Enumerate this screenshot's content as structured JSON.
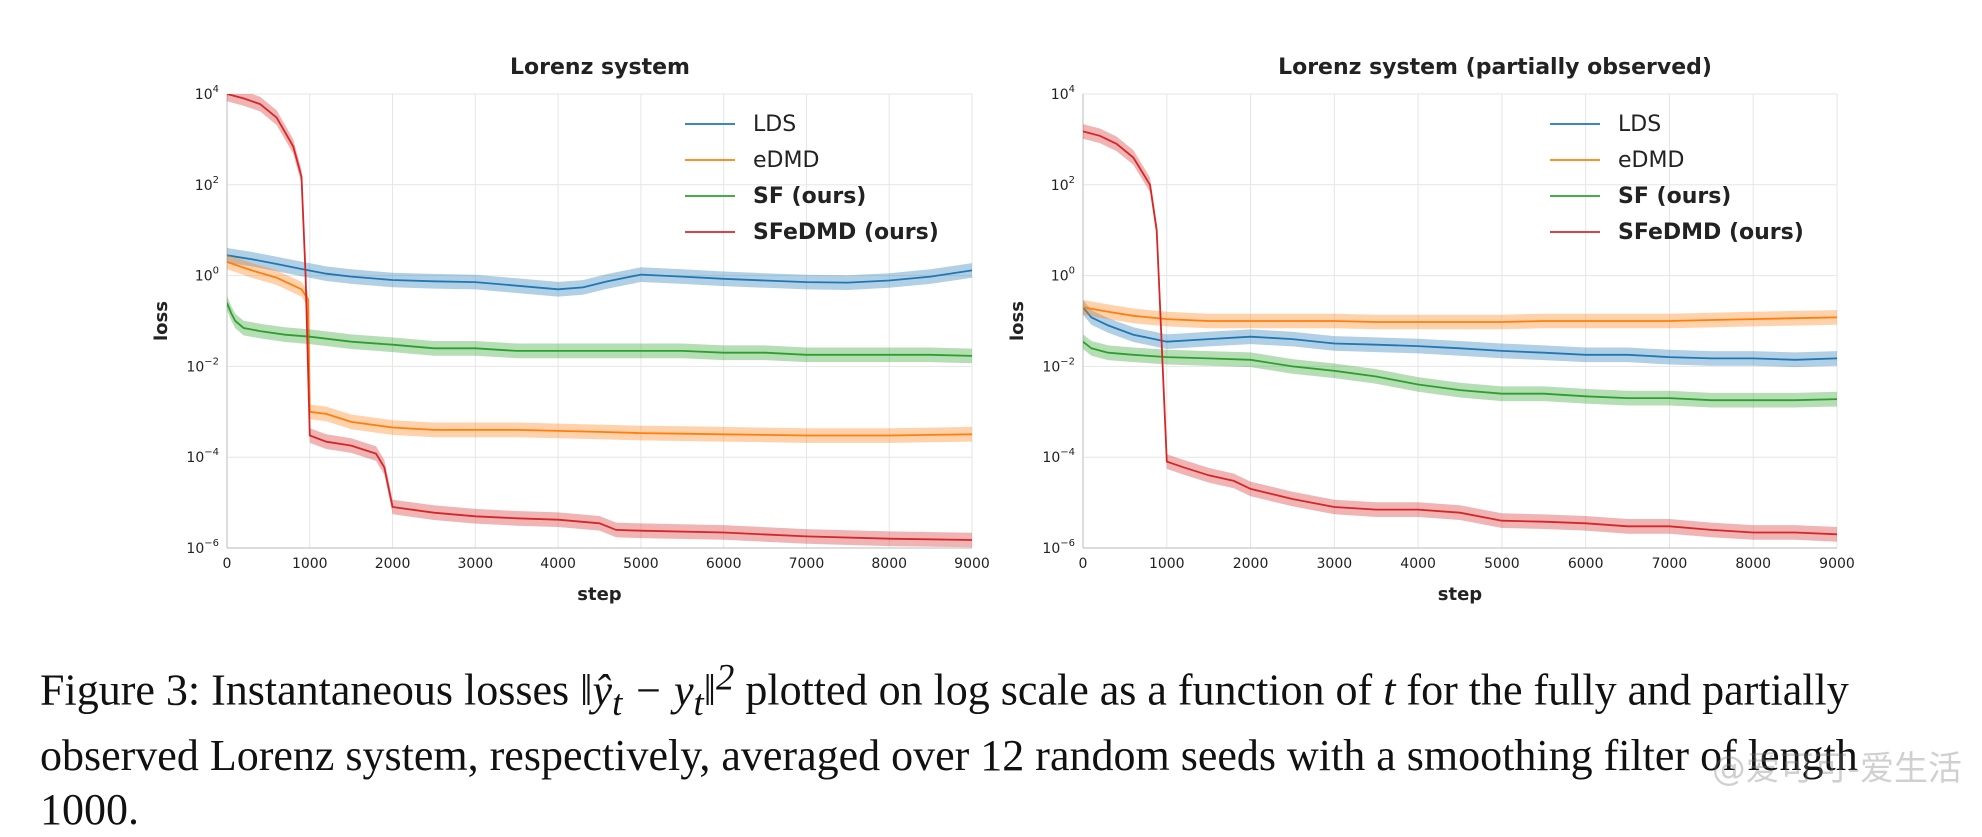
{
  "chart_data": [
    {
      "type": "line",
      "title": "Lorenz system",
      "xlabel": "step",
      "ylabel": "loss",
      "xlim": [
        0,
        9000
      ],
      "ylim_log10": [
        -6,
        4
      ],
      "yscale": "log",
      "xticks": [
        "0",
        "1000",
        "2000",
        "3000",
        "4000",
        "5000",
        "6000",
        "7000",
        "8000",
        "9000"
      ],
      "grid": true,
      "legend_position": "top-right",
      "series": [
        {
          "name": "LDS",
          "color": "#1f77b4",
          "bold": false,
          "x": [
            0,
            300,
            600,
            900,
            1200,
            1500,
            2000,
            2500,
            3000,
            3500,
            4000,
            4300,
            4600,
            5000,
            5500,
            6000,
            6500,
            7000,
            7500,
            8000,
            8500,
            9000
          ],
          "y": [
            2.8,
            2.3,
            1.8,
            1.4,
            1.1,
            0.95,
            0.8,
            0.75,
            0.72,
            0.6,
            0.5,
            0.55,
            0.75,
            1.05,
            0.95,
            0.85,
            0.78,
            0.72,
            0.7,
            0.78,
            0.95,
            1.3
          ]
        },
        {
          "name": "eDMD",
          "color": "#ff7f0e",
          "bold": false,
          "x": [
            0,
            300,
            600,
            900,
            980,
            1000,
            1200,
            1500,
            2000,
            2500,
            3000,
            3500,
            4000,
            4500,
            5000,
            5500,
            6000,
            6500,
            7000,
            7500,
            8000,
            8500,
            9000
          ],
          "y": [
            2.0,
            1.3,
            0.9,
            0.5,
            0.3,
            0.001,
            0.0009,
            0.0006,
            0.00045,
            0.0004,
            0.0004,
            0.0004,
            0.00038,
            0.00036,
            0.00034,
            0.00033,
            0.00032,
            0.00031,
            0.0003,
            0.0003,
            0.0003,
            0.00031,
            0.00032
          ]
        },
        {
          "name": "SF (ours)",
          "color": "#2ca02c",
          "bold": true,
          "x": [
            0,
            50,
            100,
            200,
            400,
            700,
            1000,
            1500,
            2000,
            2500,
            3000,
            3500,
            4000,
            4500,
            5000,
            5500,
            6000,
            6500,
            7000,
            7500,
            8000,
            8500,
            9000
          ],
          "y": [
            0.25,
            0.15,
            0.1,
            0.07,
            0.06,
            0.05,
            0.045,
            0.035,
            0.03,
            0.025,
            0.025,
            0.022,
            0.022,
            0.022,
            0.022,
            0.022,
            0.02,
            0.02,
            0.018,
            0.018,
            0.018,
            0.018,
            0.017
          ]
        },
        {
          "name": "SFeDMD (ours)",
          "color": "#d62728",
          "bold": true,
          "x": [
            0,
            200,
            400,
            600,
            800,
            900,
            950,
            1000,
            1200,
            1500,
            1800,
            1900,
            2000,
            2500,
            3000,
            3500,
            4000,
            4500,
            4700,
            5000,
            6000,
            7000,
            8000,
            9000
          ],
          "y": [
            10000,
            8000,
            6000,
            3000,
            700,
            150,
            1,
            0.0003,
            0.00022,
            0.00018,
            0.00012,
            6e-05,
            8e-06,
            6e-06,
            5e-06,
            4.5e-06,
            4.2e-06,
            3.5e-06,
            2.5e-06,
            2.4e-06,
            2.2e-06,
            1.8e-06,
            1.6e-06,
            1.5e-06
          ]
        }
      ]
    },
    {
      "type": "line",
      "title": "Lorenz system (partially observed)",
      "xlabel": "step",
      "ylabel": "loss",
      "xlim": [
        0,
        9000
      ],
      "ylim_log10": [
        -6,
        4
      ],
      "yscale": "log",
      "xticks": [
        "0",
        "1000",
        "2000",
        "3000",
        "4000",
        "5000",
        "6000",
        "7000",
        "8000",
        "9000"
      ],
      "grid": true,
      "legend_position": "top-right",
      "series": [
        {
          "name": "LDS",
          "color": "#1f77b4",
          "bold": false,
          "x": [
            0,
            100,
            300,
            600,
            1000,
            1500,
            2000,
            2500,
            3000,
            3500,
            4000,
            4500,
            5000,
            5500,
            6000,
            6500,
            7000,
            7500,
            8000,
            8500,
            9000
          ],
          "y": [
            0.2,
            0.12,
            0.08,
            0.05,
            0.035,
            0.04,
            0.045,
            0.04,
            0.032,
            0.03,
            0.028,
            0.025,
            0.022,
            0.02,
            0.018,
            0.018,
            0.016,
            0.015,
            0.015,
            0.014,
            0.015
          ]
        },
        {
          "name": "eDMD",
          "color": "#ff7f0e",
          "bold": false,
          "x": [
            0,
            300,
            600,
            1000,
            1500,
            2000,
            2500,
            3000,
            3500,
            4000,
            4500,
            5000,
            5500,
            6000,
            6500,
            7000,
            7500,
            8000,
            8500,
            9000
          ],
          "y": [
            0.2,
            0.16,
            0.13,
            0.11,
            0.1,
            0.1,
            0.1,
            0.1,
            0.095,
            0.095,
            0.095,
            0.095,
            0.1,
            0.1,
            0.1,
            0.1,
            0.105,
            0.11,
            0.115,
            0.12
          ]
        },
        {
          "name": "SF (ours)",
          "color": "#2ca02c",
          "bold": true,
          "x": [
            0,
            100,
            300,
            600,
            1000,
            1500,
            2000,
            2500,
            3000,
            3500,
            4000,
            4500,
            5000,
            5500,
            6000,
            6500,
            7000,
            7500,
            8000,
            8500,
            9000
          ],
          "y": [
            0.035,
            0.025,
            0.02,
            0.018,
            0.016,
            0.015,
            0.014,
            0.01,
            0.008,
            0.006,
            0.004,
            0.003,
            0.0025,
            0.0025,
            0.0022,
            0.002,
            0.002,
            0.0018,
            0.0018,
            0.0018,
            0.0019
          ]
        },
        {
          "name": "SFeDMD (ours)",
          "color": "#d62728",
          "bold": true,
          "x": [
            0,
            200,
            400,
            600,
            800,
            880,
            920,
            1000,
            1200,
            1500,
            1800,
            2000,
            2500,
            3000,
            3500,
            4000,
            4500,
            5000,
            5500,
            6000,
            6500,
            7000,
            7500,
            8000,
            8500,
            9000
          ],
          "y": [
            1500,
            1200,
            800,
            400,
            100,
            10,
            0.2,
            8e-05,
            6e-05,
            4e-05,
            3e-05,
            2e-05,
            1.2e-05,
            8e-06,
            7e-06,
            7e-06,
            6e-06,
            4e-06,
            3.8e-06,
            3.5e-06,
            3e-06,
            3e-06,
            2.5e-06,
            2.2e-06,
            2.2e-06,
            2e-06
          ]
        }
      ]
    }
  ],
  "caption": {
    "prefix": "Figure 3: Instantaneous losses ",
    "math": "‖ŷ",
    "math_sub": "t",
    "math_mid": " − y",
    "math_sub2": "t",
    "math_end": "‖",
    "sup": "2",
    "suffix": " plotted on log scale as a function of ",
    "t": "t",
    "suffix2": " for the fully and partially",
    "line2": "observed Lorenz system, respectively, averaged over 12 random seeds with a smoothing filter of length 1000."
  },
  "watermark": "@爱可可-爱生活"
}
